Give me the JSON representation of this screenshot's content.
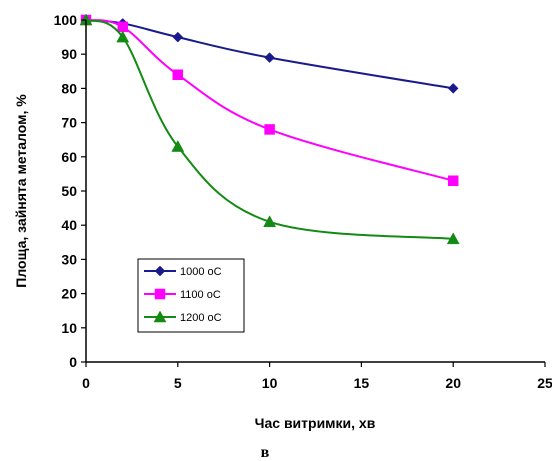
{
  "chart_data": {
    "type": "line",
    "xlabel": "Час витримки, хв",
    "ylabel": "Площа, зайнята металом, %",
    "caption": "в",
    "xlim": [
      0,
      25
    ],
    "ylim": [
      0,
      100
    ],
    "xticks": [
      "0",
      "5",
      "10",
      "15",
      "20",
      "25"
    ],
    "yticks": [
      "0",
      "10",
      "20",
      "30",
      "40",
      "50",
      "60",
      "70",
      "80",
      "90",
      "100"
    ],
    "grid": false,
    "legend_position": "lower-left",
    "series": [
      {
        "name": "1000 oC",
        "color": "#1a1a8c",
        "marker": "diamond",
        "x": [
          0,
          2,
          5,
          10,
          20
        ],
        "y": [
          100,
          99,
          95,
          89,
          80
        ]
      },
      {
        "name": "1100 oC",
        "color": "#ff00ff",
        "marker": "square",
        "x": [
          0,
          2,
          5,
          10,
          20
        ],
        "y": [
          100,
          98,
          84,
          68,
          53
        ]
      },
      {
        "name": "1200 oC",
        "color": "#138a13",
        "marker": "triangle",
        "x": [
          0,
          2,
          5,
          10,
          20
        ],
        "y": [
          100,
          95,
          63,
          41,
          36
        ]
      }
    ]
  }
}
